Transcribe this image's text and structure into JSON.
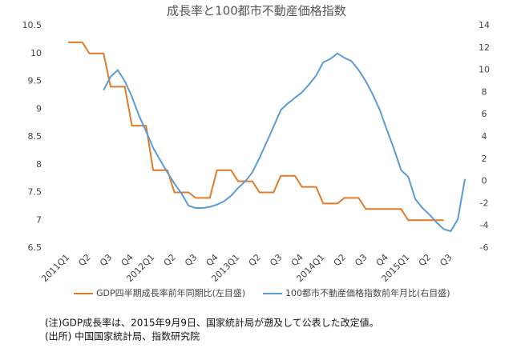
{
  "chart_data": {
    "type": "line",
    "title": "成長率と100都市不動産価格指数",
    "categories": [
      "2011Q1",
      null,
      null,
      "Q2",
      null,
      null,
      "Q3",
      null,
      null,
      "Q4",
      null,
      null,
      "2012Q1",
      null,
      null,
      "Q2",
      null,
      null,
      "Q3",
      null,
      null,
      "Q4",
      null,
      null,
      "2013Q1",
      null,
      null,
      "Q2",
      null,
      null,
      "Q3",
      null,
      null,
      "Q4",
      null,
      null,
      "2014Q1",
      null,
      null,
      "Q2",
      null,
      null,
      "Q3",
      null,
      null,
      "Q4",
      null,
      null,
      "2015Q1",
      null,
      null,
      "Q2",
      null,
      null,
      "Q3",
      null,
      null
    ],
    "series": [
      {
        "name": "GDP四半期成長率前年同期比(左目盛)",
        "color": "#e07b2a",
        "axis": "y",
        "values": [
          10.2,
          10.2,
          10.2,
          10.0,
          10.0,
          10.0,
          9.4,
          9.4,
          9.4,
          8.7,
          8.7,
          8.7,
          7.9,
          7.9,
          7.9,
          7.5,
          7.5,
          7.5,
          7.4,
          7.4,
          7.4,
          7.9,
          7.9,
          7.9,
          7.7,
          7.7,
          7.7,
          7.5,
          7.5,
          7.5,
          7.8,
          7.8,
          7.8,
          7.6,
          7.6,
          7.6,
          7.3,
          7.3,
          7.3,
          7.4,
          7.4,
          7.4,
          7.2,
          7.2,
          7.2,
          7.2,
          7.2,
          7.2,
          7.0,
          7.0,
          7.0,
          7.0,
          7.0,
          7.0,
          null,
          null,
          null
        ]
      },
      {
        "name": "100都市不動産価格指数前年月比(右目盛)",
        "color": "#5b9bd5",
        "axis": "y2",
        "values": [
          null,
          null,
          null,
          null,
          null,
          8.2,
          9.4,
          10.0,
          9.0,
          7.6,
          5.9,
          4.5,
          3.0,
          1.9,
          0.8,
          -0.2,
          -1.1,
          -2.2,
          -2.4,
          -2.4,
          -2.3,
          -2.1,
          -1.8,
          -1.3,
          -0.6,
          0.0,
          0.8,
          2.1,
          3.5,
          4.9,
          6.4,
          7.0,
          7.5,
          8.0,
          8.7,
          9.5,
          10.7,
          11.0,
          11.5,
          11.1,
          10.8,
          10.0,
          9.0,
          7.8,
          6.4,
          4.6,
          2.9,
          1.0,
          0.4,
          -1.6,
          -2.4,
          -3.0,
          -3.7,
          -4.3,
          -4.5,
          -3.4,
          0.2
        ]
      }
    ],
    "ylim": [
      6.5,
      10.5
    ],
    "yticks": [
      6.5,
      7,
      7.5,
      8,
      8.5,
      9,
      9.5,
      10,
      10.5
    ],
    "y2lim": [
      -6,
      14
    ],
    "y2ticks": [
      -6,
      -4,
      -2,
      0,
      2,
      4,
      6,
      8,
      10,
      12,
      14
    ],
    "annotations": [
      "(注)GDP成長率は、2015年9月9日、国家統計局が遡及して公表した改定値。",
      "(出所) 中国国家統計局、指数研究院"
    ]
  }
}
